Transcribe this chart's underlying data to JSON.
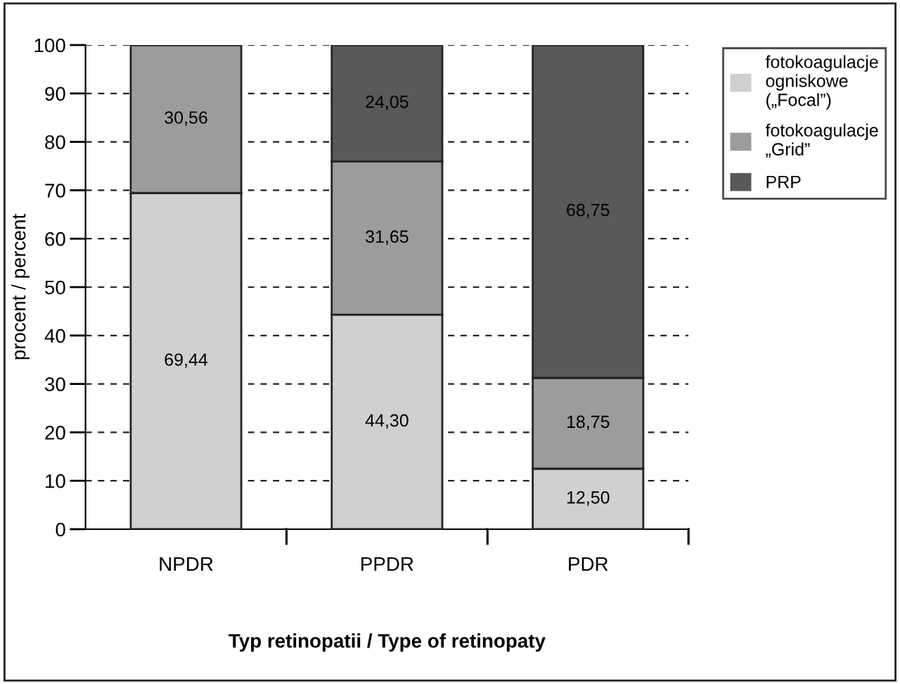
{
  "chart_data": {
    "type": "bar",
    "stacked": true,
    "xlabel": "Typ retinopatii / Type of retinopaty",
    "ylabel": "procent / percent",
    "categories": [
      "NPDR",
      "PPDR",
      "PDR"
    ],
    "series": [
      {
        "name": "fotokoagulacje ogniskowe („Focal”)",
        "color": "#d0d0d2",
        "values": [
          69.44,
          44.3,
          12.5
        ],
        "value_labels": [
          "69,44",
          "44,30",
          "12,50"
        ]
      },
      {
        "name": "fotokoagulacje „Grid”",
        "color": "#9c9c9f",
        "values": [
          30.56,
          31.65,
          18.75
        ],
        "value_labels": [
          "30,56",
          "31,65",
          "18,75"
        ]
      },
      {
        "name": "PRP",
        "color": "#59595b",
        "values": [
          null,
          24.05,
          68.75
        ],
        "value_labels": [
          null,
          "24,05",
          "68,75"
        ]
      }
    ],
    "ylim": [
      0,
      100
    ],
    "yticks": [
      0,
      10,
      20,
      30,
      40,
      50,
      60,
      70,
      80,
      90,
      100
    ],
    "grid": "y",
    "legend": "top right"
  }
}
